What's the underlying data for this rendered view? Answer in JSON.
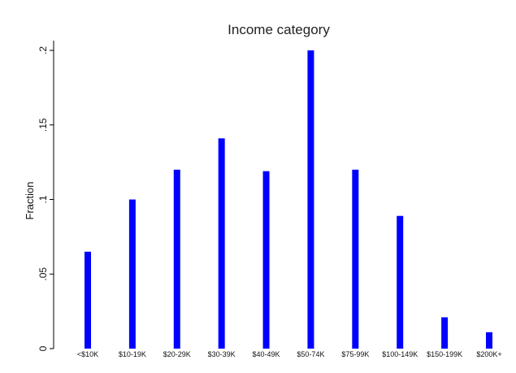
{
  "chart_data": {
    "type": "bar",
    "title": "Income category",
    "xlabel": "",
    "ylabel": "Fraction",
    "categories": [
      "<$10K",
      "$10-19K",
      "$20-29K",
      "$30-39K",
      "$40-49K",
      "$50-74K",
      "$75-99K",
      "$100-149K",
      "$150-199K",
      "$200K+"
    ],
    "values": [
      0.065,
      0.1,
      0.12,
      0.141,
      0.119,
      0.2,
      0.12,
      0.089,
      0.021,
      0.011
    ],
    "ylim": [
      0,
      0.2
    ],
    "yticks": [
      0,
      0.05,
      0.1,
      0.15,
      0.2
    ],
    "ytick_labels": [
      "0",
      ".05",
      ".1",
      ".15",
      ".2"
    ],
    "grid": false,
    "bar_color": "#0000ff"
  }
}
